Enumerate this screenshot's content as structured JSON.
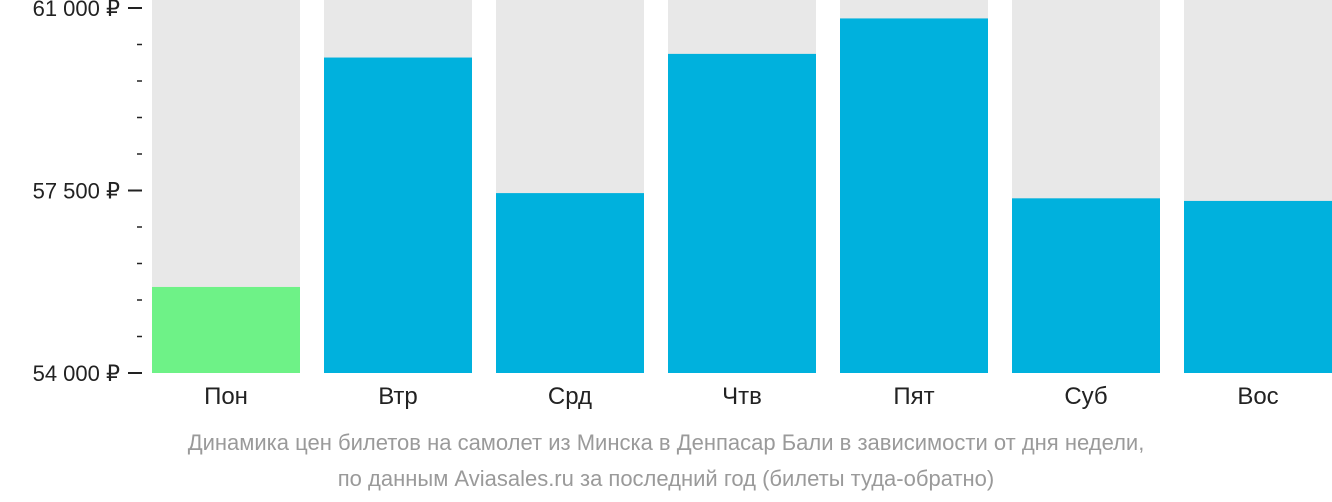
{
  "chart_data": {
    "type": "bar",
    "categories": [
      "Пон",
      "Втр",
      "Срд",
      "Чтв",
      "Пят",
      "Суб",
      "Вос"
    ],
    "values": [
      55650,
      60050,
      57450,
      60120,
      60800,
      57350,
      57300
    ],
    "highlight_index": 0,
    "ylim": [
      54000,
      61000
    ],
    "yticks": [
      {
        "value": 54000,
        "label": "54 000 ₽"
      },
      {
        "value": 57500,
        "label": "57 500 ₽"
      },
      {
        "value": 61000,
        "label": "61 000 ₽"
      }
    ],
    "minor_tick_step": 700,
    "colors": {
      "bar": "#00b1dd",
      "highlight": "#6ef287",
      "track": "#e8e8e8",
      "axis": "#222222"
    },
    "caption": [
      "Динамика цен билетов на самолет из Минска в Денпасар Бали в зависимости от дня недели,",
      "по данным Aviasales.ru за последний год (билеты туда-обратно)"
    ]
  }
}
